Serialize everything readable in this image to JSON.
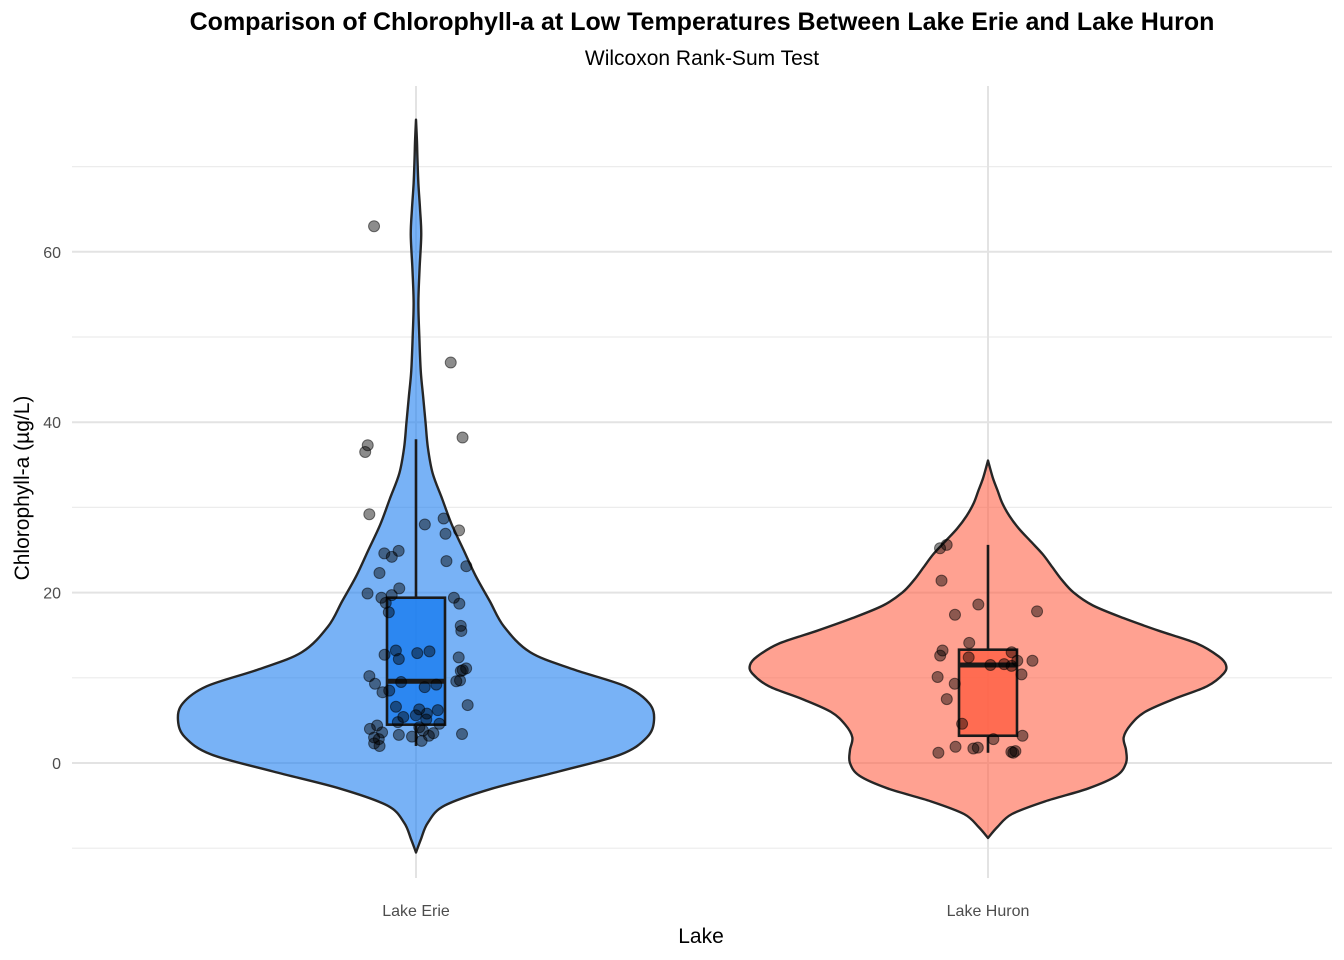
{
  "chart_data": {
    "type": "violin",
    "title": "Comparison of Chlorophyll-a at Low Temperatures Between Lake Erie and Lake Huron",
    "subtitle": "Wilcoxon Rank-Sum Test",
    "xlabel": "Lake",
    "ylabel": "Chlorophyll-a (µg/L)",
    "ylim": [
      -11,
      80
    ],
    "y_ticks": [
      0,
      20,
      40,
      60
    ],
    "grid": true,
    "legend": "none",
    "categories": [
      "Lake Erie",
      "Lake Huron"
    ],
    "groups": [
      {
        "category": "Lake Erie",
        "color": "#1E7FF0",
        "violin_range": [
          -10.5,
          75.5
        ],
        "density_profile": [
          [
            -10.5,
            0.0
          ],
          [
            -9,
            0.02
          ],
          [
            -7,
            0.05
          ],
          [
            -5,
            0.12
          ],
          [
            -3,
            0.32
          ],
          [
            -1,
            0.6
          ],
          [
            1,
            0.86
          ],
          [
            3,
            0.97
          ],
          [
            5,
            1.0
          ],
          [
            7,
            0.98
          ],
          [
            9,
            0.88
          ],
          [
            11,
            0.66
          ],
          [
            13,
            0.48
          ],
          [
            16,
            0.37
          ],
          [
            19,
            0.31
          ],
          [
            22,
            0.25
          ],
          [
            25,
            0.2
          ],
          [
            28,
            0.15
          ],
          [
            31,
            0.11
          ],
          [
            34,
            0.07
          ],
          [
            37,
            0.05
          ],
          [
            40,
            0.04
          ],
          [
            43,
            0.03
          ],
          [
            46,
            0.02
          ],
          [
            50,
            0.014
          ],
          [
            54,
            0.01
          ],
          [
            58,
            0.015
          ],
          [
            62,
            0.022
          ],
          [
            65,
            0.017
          ],
          [
            68,
            0.01
          ],
          [
            71,
            0.006
          ],
          [
            73,
            0.004
          ],
          [
            75.5,
            0.0
          ]
        ],
        "box": {
          "min": 2,
          "q1": 4.5,
          "median": 9.6,
          "q3": 19.4,
          "max": 38
        },
        "points": [
          63,
          47,
          38.2,
          37.3,
          36.5,
          29.2,
          28.7,
          28,
          27.3,
          26.9,
          24.9,
          24.6,
          24.2,
          23.7,
          23.1,
          22.3,
          20.5,
          19.9,
          19.7,
          19.4,
          19.4,
          18.8,
          18.7,
          17.7,
          16.1,
          15.5,
          13.2,
          13.1,
          12.9,
          12.7,
          12.4,
          12.2,
          11.1,
          10.9,
          10.8,
          10.2,
          9.7,
          9.6,
          9.5,
          9.3,
          9.2,
          8.9,
          8.5,
          8.3,
          6.8,
          6.6,
          6.3,
          6.2,
          5.8,
          5.6,
          5.4,
          5.1,
          4.8,
          4.6,
          4.4,
          4.2,
          4.0,
          3.8,
          3.6,
          3.5,
          3.4,
          3.3,
          3.2,
          3.1,
          3.0,
          2.8,
          2.6,
          2.3,
          2.0
        ]
      },
      {
        "category": "Lake Huron",
        "color": "#FF6347",
        "violin_range": [
          -8.8,
          35.5
        ],
        "density_profile": [
          [
            -8.8,
            0.0
          ],
          [
            -7.5,
            0.04
          ],
          [
            -6,
            0.1
          ],
          [
            -4.5,
            0.24
          ],
          [
            -3,
            0.42
          ],
          [
            -1.5,
            0.54
          ],
          [
            0,
            0.58
          ],
          [
            1.5,
            0.58
          ],
          [
            3,
            0.57
          ],
          [
            4.5,
            0.6
          ],
          [
            6,
            0.66
          ],
          [
            7.5,
            0.78
          ],
          [
            9,
            0.92
          ],
          [
            10.5,
            0.99
          ],
          [
            11.5,
            1.0
          ],
          [
            12.5,
            0.97
          ],
          [
            14,
            0.88
          ],
          [
            15.5,
            0.72
          ],
          [
            17,
            0.57
          ],
          [
            18.5,
            0.44
          ],
          [
            20,
            0.36
          ],
          [
            21.5,
            0.31
          ],
          [
            23,
            0.27
          ],
          [
            24.5,
            0.23
          ],
          [
            26,
            0.18
          ],
          [
            27.5,
            0.13
          ],
          [
            29,
            0.09
          ],
          [
            30.5,
            0.06
          ],
          [
            32,
            0.04
          ],
          [
            33.5,
            0.02
          ],
          [
            35.5,
            0.0
          ]
        ],
        "box": {
          "min": 1.2,
          "q1": 3.2,
          "median": 11.5,
          "q3": 13.3,
          "max": 25.6
        },
        "points": [
          25.6,
          25.2,
          21.4,
          18.6,
          17.8,
          17.4,
          14.1,
          13.2,
          13.0,
          12.6,
          12.4,
          12.0,
          12.0,
          11.6,
          11.5,
          11.4,
          10.4,
          10.1,
          9.3,
          7.5,
          4.6,
          3.2,
          2.8,
          1.9,
          1.8,
          1.7,
          1.4,
          1.3,
          1.2,
          1.2
        ]
      }
    ]
  }
}
